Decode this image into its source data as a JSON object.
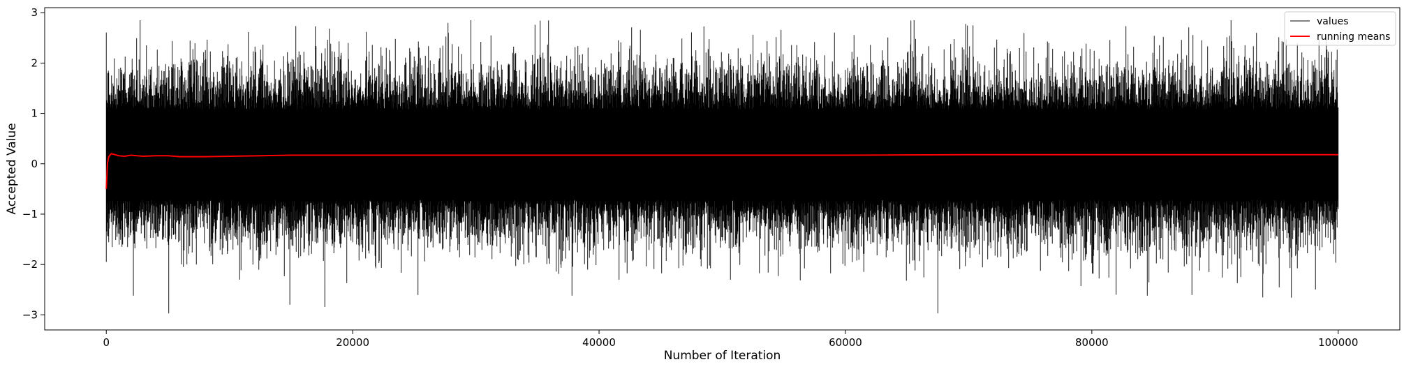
{
  "chart_data": {
    "type": "line",
    "title": "",
    "xlabel": "Number of Iteration",
    "ylabel": "Accepted Value",
    "xlim": [
      -5000,
      105000
    ],
    "ylim": [
      -3.3,
      3.1
    ],
    "xticks": [
      0,
      20000,
      40000,
      60000,
      80000,
      100000
    ],
    "xtick_labels": [
      "0",
      "20000",
      "40000",
      "60000",
      "80000",
      "100000"
    ],
    "yticks": [
      -3,
      -2,
      -1,
      0,
      1,
      2,
      3
    ],
    "ytick_labels": [
      "−3",
      "−2",
      "−1",
      "0",
      "1",
      "2",
      "3"
    ],
    "grid": false,
    "legend_position": "top-right",
    "series": [
      {
        "name": "values",
        "color": "#000000",
        "n_points": 100000,
        "summary": {
          "mean": 0.18,
          "min": -2.97,
          "max": 2.85
        },
        "notable_extremes": [
          {
            "x": 29600,
            "y": 2.85
          },
          {
            "x": 34800,
            "y": 2.76
          },
          {
            "x": 21100,
            "y": 2.62
          },
          {
            "x": 47500,
            "y": 2.61
          },
          {
            "x": 52500,
            "y": 2.56
          },
          {
            "x": 85800,
            "y": 2.52
          },
          {
            "x": 65700,
            "y": 2.48
          },
          {
            "x": 67500,
            "y": -2.97
          },
          {
            "x": 14900,
            "y": -2.8
          },
          {
            "x": 96200,
            "y": -2.66
          },
          {
            "x": 2200,
            "y": -2.62
          },
          {
            "x": 37800,
            "y": -2.62
          },
          {
            "x": 84500,
            "y": -2.62
          }
        ]
      },
      {
        "name": "running means",
        "color": "#ff0000",
        "x": [
          0,
          100,
          200,
          400,
          600,
          1000,
          1500,
          2000,
          3000,
          4000,
          5000,
          6000,
          8000,
          10000,
          15000,
          20000,
          30000,
          40000,
          50000,
          60000,
          70000,
          80000,
          90000,
          100000
        ],
        "y": [
          -0.5,
          0.02,
          0.14,
          0.2,
          0.19,
          0.16,
          0.15,
          0.17,
          0.15,
          0.16,
          0.16,
          0.14,
          0.14,
          0.15,
          0.17,
          0.17,
          0.17,
          0.17,
          0.17,
          0.17,
          0.18,
          0.18,
          0.18,
          0.18
        ]
      }
    ]
  }
}
